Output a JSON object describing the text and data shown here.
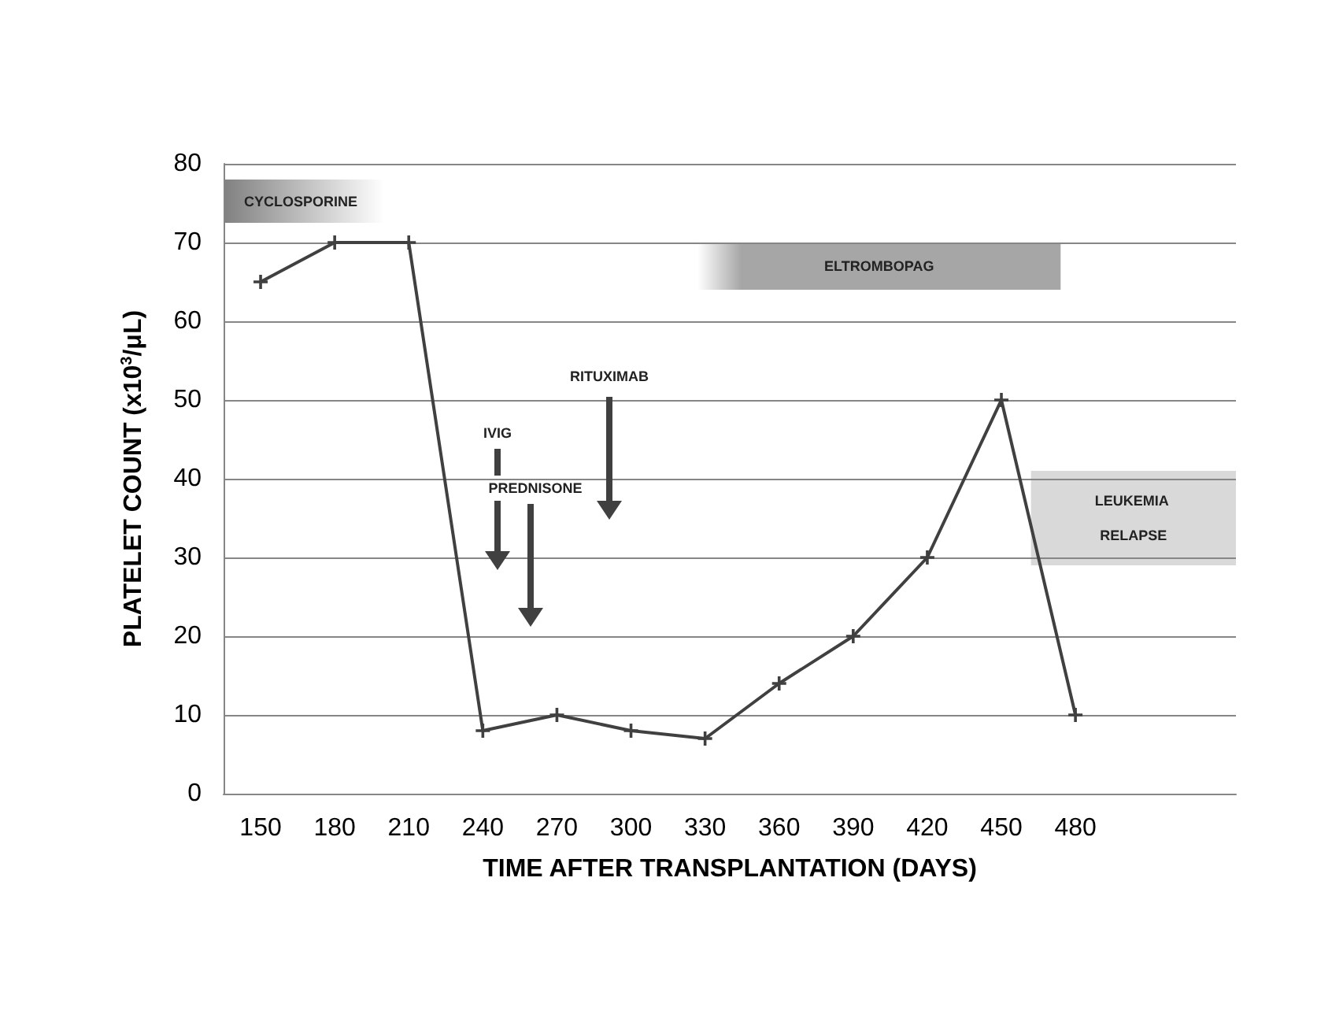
{
  "chart_data": {
    "type": "line",
    "xlabel": "TIME AFTER TRANSPLANTATION (DAYS)",
    "ylabel": "PLATELET COUNT (x10$^{3}$/μL)",
    "x": [
      150,
      180,
      210,
      240,
      270,
      300,
      330,
      360,
      390,
      420,
      450,
      480
    ],
    "series": [
      {
        "color": "#404040",
        "values": [
          65,
          70,
          70,
          8,
          10,
          8,
          7,
          14,
          20,
          30,
          50,
          10
        ]
      }
    ],
    "xlim": [
      135,
      545
    ],
    "xticks": [
      150,
      180,
      210,
      240,
      270,
      300,
      330,
      360,
      390,
      420,
      450,
      480
    ],
    "ylim": [
      0,
      80
    ],
    "yticks": [
      0,
      10,
      20,
      30,
      40,
      50,
      60,
      70,
      80
    ],
    "grid": "y",
    "marker": "cross",
    "line_style": "solid",
    "bands": [
      {
        "axis": "x",
        "from": 135,
        "to": 200,
        "label": "CYCLOSPORINE",
        "color": "#808080"
      },
      {
        "axis": "x",
        "from": 327,
        "to": 474,
        "label": "ELTROMBOPAG",
        "color": "#a6a6a6"
      },
      {
        "axis": "x",
        "from": 462,
        "to": 545,
        "label": "LEUKEMIA RELAPSE",
        "color": "#d9d9d9"
      }
    ],
    "annotations": [
      "IVIG",
      "PREDNISONE",
      "RITUXIMAB"
    ]
  }
}
